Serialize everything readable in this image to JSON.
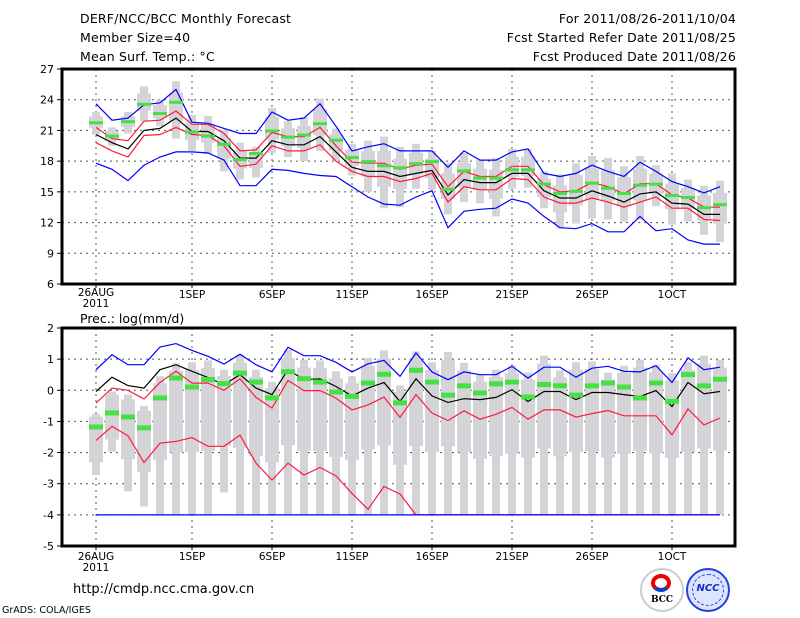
{
  "header": {
    "title": "DERF/NCC/BCC Monthly Forecast",
    "member_size": "Member Size=40",
    "variable_top": "Mean Surf. Temp.: °C",
    "period": "For 2011/08/26-2011/10/04",
    "started": "Fcst Started Refer Date 2011/08/25",
    "produced": "Fcst Produced Date 2011/08/26"
  },
  "footer": {
    "url": "http://cmdp.ncc.cma.gov.cn",
    "grads": "GrADS: COLA/IGES",
    "logo_bcc": "BCC",
    "logo_ncc": "NCC"
  },
  "colors": {
    "max_min": "#0000ff",
    "spread": "#ff1a3c",
    "mean": "#000000",
    "obs": "#44e044",
    "range": "#d4d4d8"
  },
  "chart_data": [
    {
      "type": "line",
      "title": "Mean Surf. Temp.: °C",
      "x_start": "26AUG 2011",
      "xticks": [
        {
          "day": 0,
          "label": "26AUG",
          "sub": "2011"
        },
        {
          "day": 6,
          "label": "1SEP"
        },
        {
          "day": 11,
          "label": "6SEP"
        },
        {
          "day": 16,
          "label": "11SEP"
        },
        {
          "day": 21,
          "label": "16SEP"
        },
        {
          "day": 26,
          "label": "21SEP"
        },
        {
          "day": 31,
          "label": "26SEP"
        },
        {
          "day": 36,
          "label": "1OCT"
        }
      ],
      "xticks_display": [
        "26AUG",
        "1SEP",
        "6SEP",
        "11SEP",
        "16SEP",
        "21SEP",
        "26SEP",
        "1OCT"
      ],
      "ylim": [
        6,
        27
      ],
      "yticks": [
        6,
        9,
        12,
        15,
        18,
        21,
        24,
        27
      ],
      "grid": true,
      "series": [
        {
          "name": "max",
          "color": "#0000ff",
          "values": [
            23.6,
            22.0,
            22.2,
            23.5,
            23.7,
            25.0,
            21.8,
            21.7,
            21.2,
            20.7,
            20.7,
            22.8,
            22.0,
            22.2,
            23.6,
            21.4,
            19.0,
            19.4,
            19.7,
            19.0,
            19.0,
            19.0,
            17.4,
            19.0,
            18.1,
            18.1,
            18.9,
            19.2,
            16.8,
            16.5,
            16.8,
            17.6,
            17.0,
            16.5,
            17.9,
            17.0,
            16.0,
            15.5,
            14.9,
            15.5
          ]
        },
        {
          "name": "upper",
          "color": "#ff1a3c",
          "values": [
            21.3,
            20.2,
            20.0,
            21.9,
            22.0,
            22.9,
            21.6,
            21.6,
            20.7,
            19.0,
            19.1,
            20.8,
            20.4,
            20.4,
            21.3,
            19.5,
            17.9,
            17.8,
            17.8,
            17.2,
            17.6,
            17.7,
            15.5,
            17.0,
            16.5,
            16.5,
            17.5,
            17.5,
            15.7,
            15.0,
            15.1,
            15.9,
            15.5,
            14.8,
            15.8,
            15.8,
            14.7,
            14.4,
            13.5,
            13.5
          ]
        },
        {
          "name": "mean",
          "color": "#000000",
          "values": [
            20.6,
            19.8,
            19.2,
            21.0,
            21.2,
            22.2,
            20.9,
            20.9,
            20.0,
            18.3,
            18.3,
            20.0,
            19.6,
            19.6,
            20.4,
            18.9,
            17.4,
            17.0,
            17.0,
            16.5,
            16.8,
            17.1,
            14.7,
            16.2,
            15.9,
            15.9,
            16.8,
            16.8,
            15.1,
            14.4,
            14.4,
            15.1,
            14.6,
            14.0,
            14.8,
            15.0,
            13.9,
            13.8,
            12.8,
            12.8
          ]
        },
        {
          "name": "lower",
          "color": "#ff1a3c",
          "values": [
            19.8,
            19.0,
            18.4,
            20.5,
            20.6,
            21.3,
            20.6,
            20.5,
            19.5,
            17.5,
            17.7,
            19.5,
            19.0,
            19.0,
            19.6,
            18.0,
            17.0,
            16.5,
            16.5,
            16.0,
            16.3,
            16.8,
            14.0,
            15.5,
            15.2,
            15.2,
            16.3,
            16.2,
            14.5,
            13.9,
            13.9,
            14.4,
            14.0,
            13.5,
            14.0,
            14.5,
            13.4,
            13.4,
            12.3,
            12.2
          ]
        },
        {
          "name": "min",
          "color": "#0000ff",
          "values": [
            17.8,
            17.2,
            16.1,
            17.6,
            18.4,
            18.9,
            18.9,
            18.8,
            18.1,
            15.6,
            15.6,
            17.2,
            17.1,
            16.8,
            16.6,
            16.5,
            15.5,
            14.5,
            13.8,
            13.7,
            14.5,
            15.1,
            11.5,
            13.1,
            13.3,
            13.4,
            14.3,
            13.9,
            12.6,
            11.5,
            11.4,
            11.9,
            11.1,
            11.1,
            12.6,
            11.2,
            11.4,
            10.3,
            9.9,
            9.9
          ]
        }
      ],
      "obs": [
        21.7,
        20.4,
        21.8,
        23.5,
        22.6,
        23.7,
        20.8,
        20.4,
        19.6,
        18.1,
        18.7,
        20.9,
        20.3,
        20.5,
        21.6,
        20.0,
        18.3,
        17.9,
        17.5,
        17.3,
        17.7,
        17.9,
        15.2,
        17.0,
        16.3,
        16.3,
        17.1,
        17.1,
        15.7,
        14.8,
        15.0,
        15.8,
        15.3,
        14.8,
        15.6,
        15.7,
        14.6,
        14.4,
        13.4,
        13.7
      ],
      "range_high": [
        22.8,
        21.3,
        22.8,
        25.3,
        24.0,
        25.8,
        22.5,
        22.4,
        21.1,
        19.8,
        19.4,
        23.2,
        21.9,
        22.3,
        24.1,
        21.2,
        19.7,
        20.0,
        20.4,
        19.4,
        19.7,
        19.0,
        17.8,
        18.8,
        18.1,
        18.3,
        19.2,
        19.2,
        17.0,
        16.7,
        17.8,
        18.5,
        18.3,
        17.5,
        18.5,
        17.6,
        16.8,
        16.2,
        15.6,
        16.1
      ],
      "range_low": [
        20.6,
        19.5,
        20.7,
        21.9,
        21.4,
        20.2,
        19.0,
        18.7,
        17.0,
        16.2,
        16.4,
        18.8,
        18.4,
        18.0,
        19.0,
        18.1,
        16.6,
        15.0,
        13.4,
        13.5,
        15.3,
        15.2,
        12.8,
        14.0,
        13.9,
        12.6,
        15.3,
        15.4,
        13.4,
        11.4,
        11.9,
        12.4,
        12.3,
        12.1,
        12.3,
        13.6,
        11.8,
        12.1,
        10.8,
        10.1
      ]
    },
    {
      "type": "line",
      "title": "Prec.: log(mm/d)",
      "xticks_display": [
        "26AUG",
        "1SEP",
        "6SEP",
        "11SEP",
        "16SEP",
        "21SEP",
        "26SEP",
        "1OCT"
      ],
      "x_sub": "2011",
      "ylim": [
        -5,
        2
      ],
      "yticks": [
        -5,
        -4,
        -3,
        -2,
        -1,
        0,
        1,
        2
      ],
      "grid": true,
      "series": [
        {
          "name": "max",
          "color": "#0000ff",
          "values": [
            0.66,
            1.14,
            0.82,
            0.82,
            1.39,
            1.5,
            1.28,
            1.09,
            0.84,
            1.16,
            0.82,
            0.59,
            1.38,
            1.11,
            1.11,
            0.9,
            0.59,
            0.85,
            0.96,
            0.45,
            1.2,
            0.59,
            0.34,
            0.59,
            0.5,
            0.5,
            0.77,
            0.39,
            0.74,
            0.74,
            0.42,
            0.71,
            0.77,
            0.61,
            0.59,
            0.79,
            0.25,
            1.04,
            0.66,
            0.74
          ]
        },
        {
          "name": "upper",
          "color": "#ff1a3c",
          "values": [
            -0.41,
            0.07,
            0.0,
            -0.28,
            0.25,
            0.61,
            0.23,
            0.23,
            0.0,
            0.37,
            -0.23,
            -0.57,
            0.32,
            -0.01,
            -0.01,
            -0.25,
            -0.63,
            -0.47,
            -0.22,
            -0.87,
            -0.14,
            -0.73,
            -0.97,
            -0.66,
            -0.93,
            -0.77,
            -0.55,
            -0.93,
            -0.63,
            -0.63,
            -0.86,
            -0.75,
            -0.65,
            -0.82,
            -0.82,
            -0.82,
            -1.43,
            -0.6,
            -1.11,
            -0.89
          ]
        },
        {
          "name": "mean",
          "color": "#000000",
          "values": [
            -0.04,
            0.42,
            0.15,
            0.07,
            0.66,
            0.82,
            0.61,
            0.41,
            0.18,
            0.5,
            0.07,
            -0.14,
            0.66,
            0.34,
            0.37,
            0.12,
            -0.18,
            0.07,
            0.25,
            -0.36,
            0.37,
            -0.18,
            -0.39,
            -0.27,
            -0.3,
            -0.23,
            0.02,
            -0.36,
            -0.04,
            -0.04,
            -0.3,
            -0.07,
            -0.07,
            -0.14,
            -0.2,
            -0.01,
            -0.52,
            0.25,
            -0.11,
            -0.04
          ]
        },
        {
          "name": "lower",
          "color": "#ff1a3c",
          "values": [
            -1.61,
            -1.16,
            -1.46,
            -2.32,
            -1.7,
            -1.64,
            -1.52,
            -1.8,
            -1.8,
            -1.44,
            -2.34,
            -2.88,
            -2.34,
            -2.72,
            -2.48,
            -2.75,
            -3.31,
            -3.82,
            -3.09,
            -3.33,
            -4,
            -4,
            -4,
            -4,
            -4,
            -4,
            -4,
            -4,
            -4,
            -4,
            -4,
            -4,
            -4,
            -4,
            -4,
            -4,
            -4,
            -4,
            -4,
            -4
          ]
        },
        {
          "name": "min",
          "color": "#0000ff",
          "values": [
            -4,
            -4,
            -4,
            -4,
            -4,
            -4,
            -4,
            -4,
            -4,
            -4,
            -4,
            -4,
            -4,
            -4,
            -4,
            -4,
            -4,
            -4,
            -4,
            -4,
            -4,
            -4,
            -4,
            -4,
            -4,
            -4,
            -4,
            -4,
            -4,
            -4,
            -4,
            -4,
            -4,
            -4,
            -4,
            -4,
            -4,
            -4,
            -4,
            -4
          ]
        }
      ],
      "obs": [
        -1.16,
        -0.71,
        -0.84,
        -1.19,
        -0.23,
        0.41,
        0.12,
        0.36,
        0.23,
        0.57,
        0.28,
        -0.23,
        0.61,
        0.39,
        0.28,
        -0.04,
        -0.18,
        0.25,
        0.53,
        -0.39,
        0.66,
        0.28,
        -0.14,
        0.16,
        -0.07,
        0.22,
        0.28,
        -0.2,
        0.2,
        0.16,
        -0.14,
        0.16,
        0.25,
        0.12,
        -0.23,
        0.25,
        -0.34,
        0.52,
        0.16,
        0.37
      ],
      "range_high": [
        -0.75,
        -0.04,
        -0.14,
        -0.5,
        0.45,
        0.87,
        0.9,
        0.96,
        0.66,
        1.14,
        0.66,
        0.28,
        1.3,
        0.98,
        0.96,
        0.61,
        0.45,
        1.04,
        1.28,
        0.15,
        1.25,
        0.9,
        1.23,
        0.88,
        0.5,
        0.66,
        0.79,
        0.57,
        1.11,
        0.64,
        0.9,
        0.93,
        0.57,
        0.79,
        0.98,
        0.82,
        0.55,
        0.9,
        1.11,
        0.98
      ],
      "range_low": [
        -2.72,
        -1.97,
        -3.25,
        -3.73,
        -4,
        -4,
        -4,
        -4,
        -3.28,
        -4,
        -4,
        -4,
        -4,
        -4,
        -4,
        -4,
        -4,
        -4,
        -4,
        -4,
        -4,
        -4,
        -4,
        -4,
        -4,
        -4,
        -4,
        -4,
        -4,
        -4,
        -4,
        -4,
        -4,
        -4,
        -4,
        -4,
        -4,
        -4,
        -4,
        -4
      ]
    }
  ]
}
